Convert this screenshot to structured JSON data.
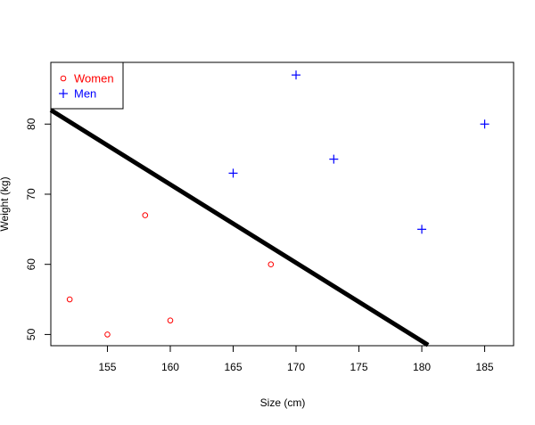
{
  "chart_data": {
    "type": "scatter",
    "title": "",
    "xlabel": "Size (cm)",
    "ylabel": "Weight (kg)",
    "xlim": [
      150.5,
      187.3
    ],
    "ylim": [
      48.4,
      88.8
    ],
    "xticks": [
      155,
      160,
      165,
      170,
      175,
      180,
      185
    ],
    "yticks": [
      50,
      60,
      70,
      80
    ],
    "series": [
      {
        "name": "Women",
        "marker": "circle",
        "color": "#ff0000",
        "points": [
          [
            152,
            55
          ],
          [
            155,
            50
          ],
          [
            158,
            67
          ],
          [
            160,
            52
          ],
          [
            168,
            60
          ]
        ]
      },
      {
        "name": "Men",
        "marker": "plus",
        "color": "#0000ff",
        "points": [
          [
            165,
            73
          ],
          [
            170,
            87
          ],
          [
            173,
            75
          ],
          [
            180,
            65
          ],
          [
            185,
            80
          ]
        ]
      }
    ],
    "line": {
      "color": "#000000",
      "points": [
        [
          150.5,
          82
        ],
        [
          180.5,
          48.5
        ]
      ]
    },
    "legend": {
      "position": "top-left",
      "entries": [
        {
          "label": "Women",
          "color": "#ff0000",
          "marker": "circle"
        },
        {
          "label": "Men",
          "color": "#0000ff",
          "marker": "plus"
        }
      ]
    }
  }
}
